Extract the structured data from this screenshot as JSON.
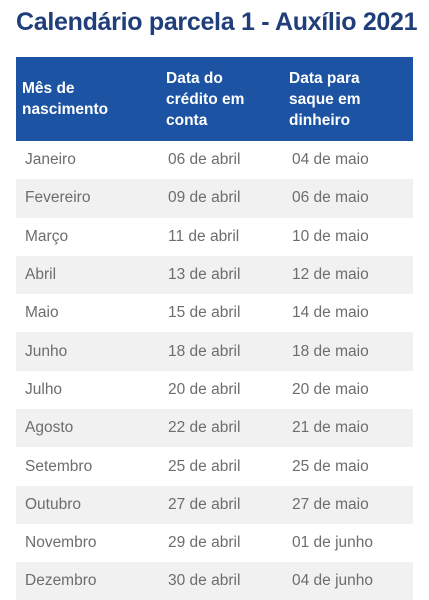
{
  "title": "Calendário parcela 1 - Auxílio 2021",
  "headers": [
    "Mês de\nnascimento",
    "Data do\ncrédito em\nconta",
    "Data para\nsaque em\ndinheiro"
  ],
  "rows": [
    [
      "Janeiro",
      "06 de abril",
      "04 de maio"
    ],
    [
      "Fevereiro",
      "09 de abril",
      "06 de maio"
    ],
    [
      "Março",
      "11 de abril",
      "10 de maio"
    ],
    [
      "Abril",
      "13 de abril",
      "12 de maio"
    ],
    [
      "Maio",
      "15 de abril",
      "14 de maio"
    ],
    [
      "Junho",
      "18 de abril",
      "18 de maio"
    ],
    [
      "Julho",
      "20 de abril",
      "20 de maio"
    ],
    [
      "Agosto",
      "22 de abril",
      "21 de maio"
    ],
    [
      "Setembro",
      "25 de abril",
      "25 de maio"
    ],
    [
      "Outubro",
      "27 de abril",
      "27 de maio"
    ],
    [
      "Novembro",
      "29 de abril",
      "01 de junho"
    ],
    [
      "Dezembro",
      "30 de abril",
      "04 de junho"
    ]
  ],
  "colors": {
    "title": "#1f3e7a",
    "header_bg": "#1d53a3",
    "stripe": "#f1f1f1"
  }
}
